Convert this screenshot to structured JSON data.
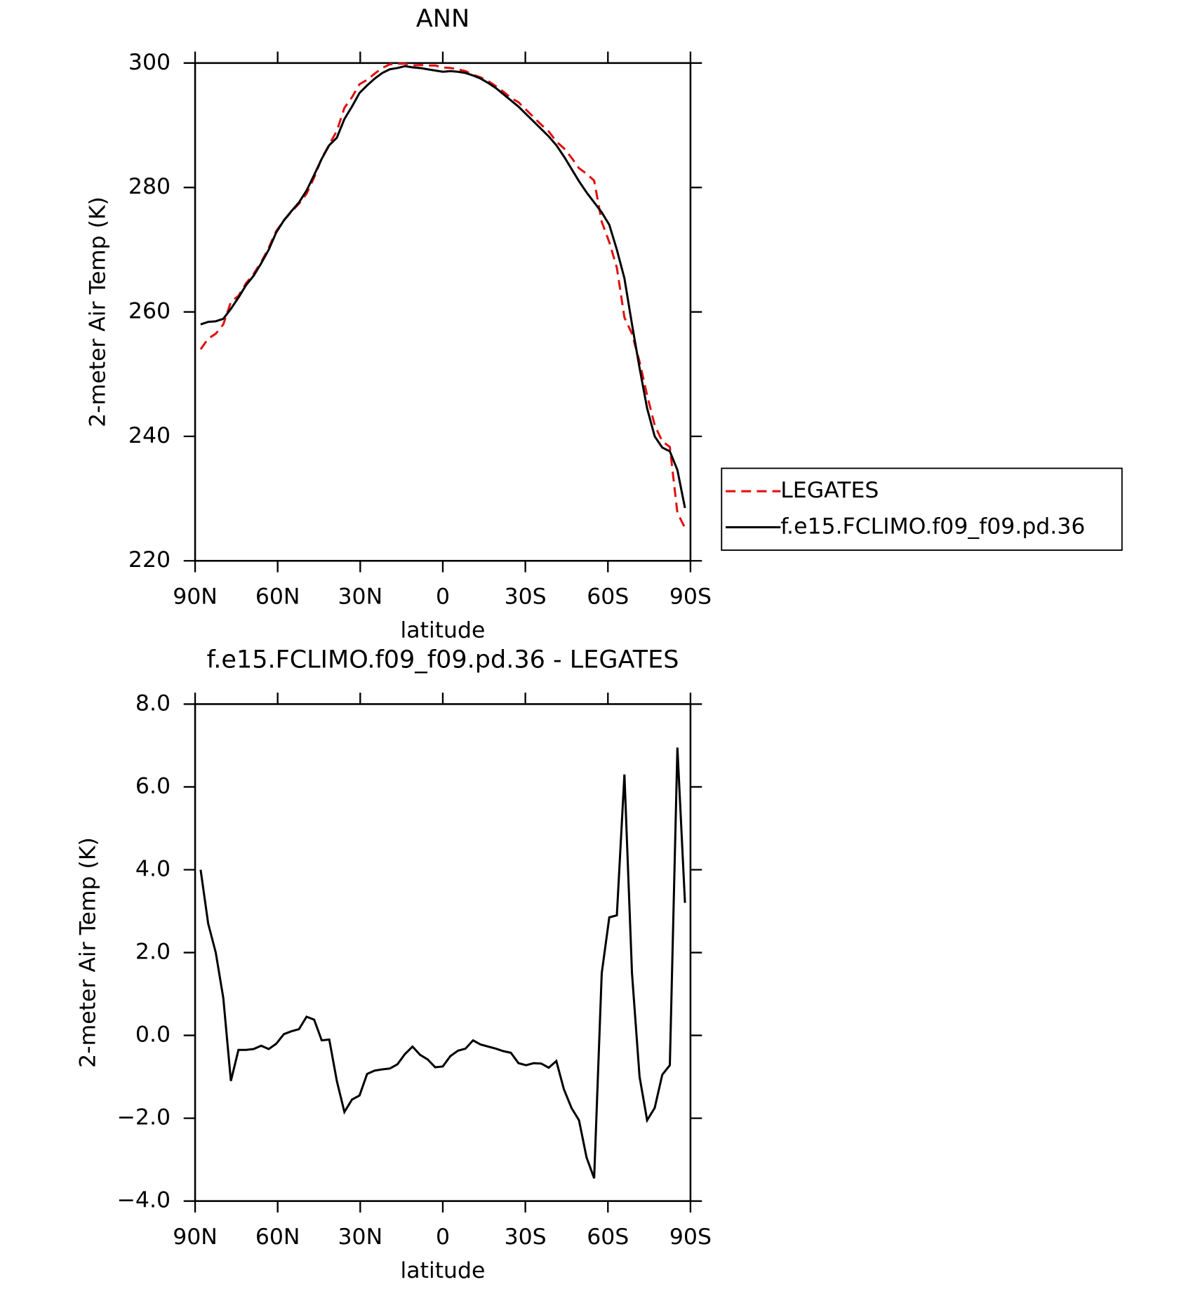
{
  "chart_data": [
    {
      "type": "line",
      "title": "ANN",
      "xlabel": "latitude",
      "ylabel": "2-meter Air Temp (K)",
      "xlim": [
        90,
        -90
      ],
      "ylim": [
        220,
        300
      ],
      "xticks": [
        {
          "value": 90,
          "label": "90N"
        },
        {
          "value": 60,
          "label": "60N"
        },
        {
          "value": 30,
          "label": "30N"
        },
        0,
        {
          "value": -30,
          "label": "30S"
        },
        {
          "value": -60,
          "label": "60S"
        },
        {
          "value": -90,
          "label": "90S"
        }
      ],
      "yticks": [
        220,
        240,
        260,
        280,
        300
      ],
      "legend": "right",
      "x": [
        88,
        85.25,
        82.5,
        79.75,
        77,
        74.25,
        71.5,
        68.75,
        66,
        63.25,
        60.5,
        57.75,
        55,
        52.25,
        49.5,
        46.75,
        44,
        41.25,
        38.5,
        35.75,
        33,
        30.25,
        27.5,
        24.75,
        22,
        19.25,
        16.5,
        13.75,
        11,
        8.25,
        5.5,
        2.75,
        0,
        -2.75,
        -5.5,
        -8.25,
        -11,
        -13.75,
        -16.5,
        -19.25,
        -22,
        -24.75,
        -27.5,
        -30.25,
        -33,
        -35.75,
        -38.5,
        -41.25,
        -44,
        -46.75,
        -49.5,
        -52.25,
        -55,
        -57.75,
        -60.5,
        -63.25,
        -66,
        -68.75,
        -71.5,
        -74.25,
        -77,
        -79.75,
        -82.5,
        -85.25,
        -88
      ],
      "series": [
        {
          "name": "LEGATES",
          "color": "#e01010",
          "line_style": "dashed",
          "values": [
            254.0,
            255.7,
            256.5,
            258.0,
            261.6,
            262.6,
            264.6,
            266.1,
            268.0,
            270.3,
            273.0,
            274.7,
            276.1,
            277.4,
            279.0,
            281.6,
            284.7,
            286.9,
            289.1,
            292.8,
            294.5,
            296.6,
            297.3,
            298.3,
            299.2,
            299.8,
            299.9,
            299.9,
            299.6,
            299.7,
            299.6,
            299.6,
            299.3,
            299.2,
            299.0,
            298.7,
            298.1,
            297.7,
            297.1,
            296.3,
            295.4,
            294.4,
            293.7,
            292.5,
            291.3,
            290.1,
            289.0,
            287.4,
            286.3,
            284.8,
            283.1,
            282.2,
            281.1,
            274.5,
            271.2,
            267.1,
            259.1,
            256.5,
            252.0,
            246.6,
            241.8,
            239.2,
            238.3,
            227.7,
            225.3
          ]
        },
        {
          "name": "f.e15.FCLIMO.f09_f09.pd.36",
          "color": "#000000",
          "line_style": "solid",
          "values": [
            258.0,
            258.4,
            258.5,
            258.9,
            260.5,
            262.3,
            264.3,
            265.8,
            267.8,
            270.0,
            272.8,
            274.7,
            276.2,
            277.6,
            279.5,
            282.0,
            284.6,
            286.8,
            288.0,
            291.0,
            293.0,
            295.2,
            296.4,
            297.5,
            298.4,
            299.0,
            299.2,
            299.5,
            299.3,
            299.2,
            299.0,
            298.8,
            298.6,
            298.7,
            298.6,
            298.4,
            298.0,
            297.5,
            296.8,
            296.0,
            295.0,
            294.0,
            293.0,
            291.8,
            290.6,
            289.4,
            288.2,
            286.8,
            285.0,
            283.0,
            281.0,
            279.2,
            277.6,
            276.0,
            274.0,
            270.0,
            265.4,
            258.0,
            251.0,
            244.5,
            240.0,
            238.2,
            237.6,
            234.6,
            228.5
          ]
        }
      ]
    },
    {
      "type": "line",
      "title": "f.e15.FCLIMO.f09_f09.pd.36 - LEGATES",
      "xlabel": "latitude",
      "ylabel": "2-meter Air Temp (K)",
      "xlim": [
        90,
        -90
      ],
      "ylim": [
        -4,
        8
      ],
      "xticks": [
        {
          "value": 90,
          "label": "90N"
        },
        {
          "value": 60,
          "label": "60N"
        },
        {
          "value": 30,
          "label": "30N"
        },
        0,
        {
          "value": -30,
          "label": "30S"
        },
        {
          "value": -60,
          "label": "60S"
        },
        {
          "value": -90,
          "label": "90S"
        }
      ],
      "yticks": [
        {
          "value": -4,
          "label": "−4.0"
        },
        {
          "value": -2,
          "label": "−2.0"
        },
        {
          "value": 0,
          "label": "0.0"
        },
        {
          "value": 2,
          "label": "2.0"
        },
        {
          "value": 4,
          "label": "4.0"
        },
        {
          "value": 6,
          "label": "6.0"
        },
        {
          "value": 8,
          "label": "8.0"
        }
      ],
      "x": [
        88,
        85.25,
        82.5,
        79.75,
        77,
        74.25,
        71.5,
        68.75,
        66,
        63.25,
        60.5,
        57.75,
        55,
        52.25,
        49.5,
        46.75,
        44,
        41.25,
        38.5,
        35.75,
        33,
        30.25,
        27.5,
        24.75,
        22,
        19.25,
        16.5,
        13.75,
        11,
        8.25,
        5.5,
        2.75,
        0,
        -2.75,
        -5.5,
        -8.25,
        -11,
        -13.75,
        -16.5,
        -19.25,
        -22,
        -24.75,
        -27.5,
        -30.25,
        -33,
        -35.75,
        -38.5,
        -41.25,
        -44,
        -46.75,
        -49.5,
        -52.25,
        -55,
        -57.75,
        -60.5,
        -63.25,
        -66,
        -68.75,
        -71.5,
        -74.25,
        -77,
        -79.75,
        -82.5,
        -85.25,
        -88
      ],
      "series": [
        {
          "color": "#000000",
          "line_style": "solid",
          "values": [
            4.0,
            2.7,
            2.0,
            0.9,
            -1.1,
            -0.35,
            -0.35,
            -0.33,
            -0.25,
            -0.33,
            -0.2,
            0.03,
            0.1,
            0.15,
            0.45,
            0.38,
            -0.12,
            -0.1,
            -1.1,
            -1.85,
            -1.55,
            -1.45,
            -0.93,
            -0.85,
            -0.82,
            -0.8,
            -0.7,
            -0.45,
            -0.27,
            -0.47,
            -0.58,
            -0.77,
            -0.75,
            -0.5,
            -0.37,
            -0.32,
            -0.12,
            -0.22,
            -0.27,
            -0.32,
            -0.38,
            -0.42,
            -0.67,
            -0.72,
            -0.67,
            -0.68,
            -0.78,
            -0.62,
            -1.3,
            -1.75,
            -2.05,
            -2.95,
            -3.45,
            1.5,
            2.85,
            2.9,
            6.3,
            1.5,
            -1.0,
            -2.05,
            -1.75,
            -0.95,
            -0.72,
            6.95,
            3.2
          ]
        }
      ]
    }
  ]
}
